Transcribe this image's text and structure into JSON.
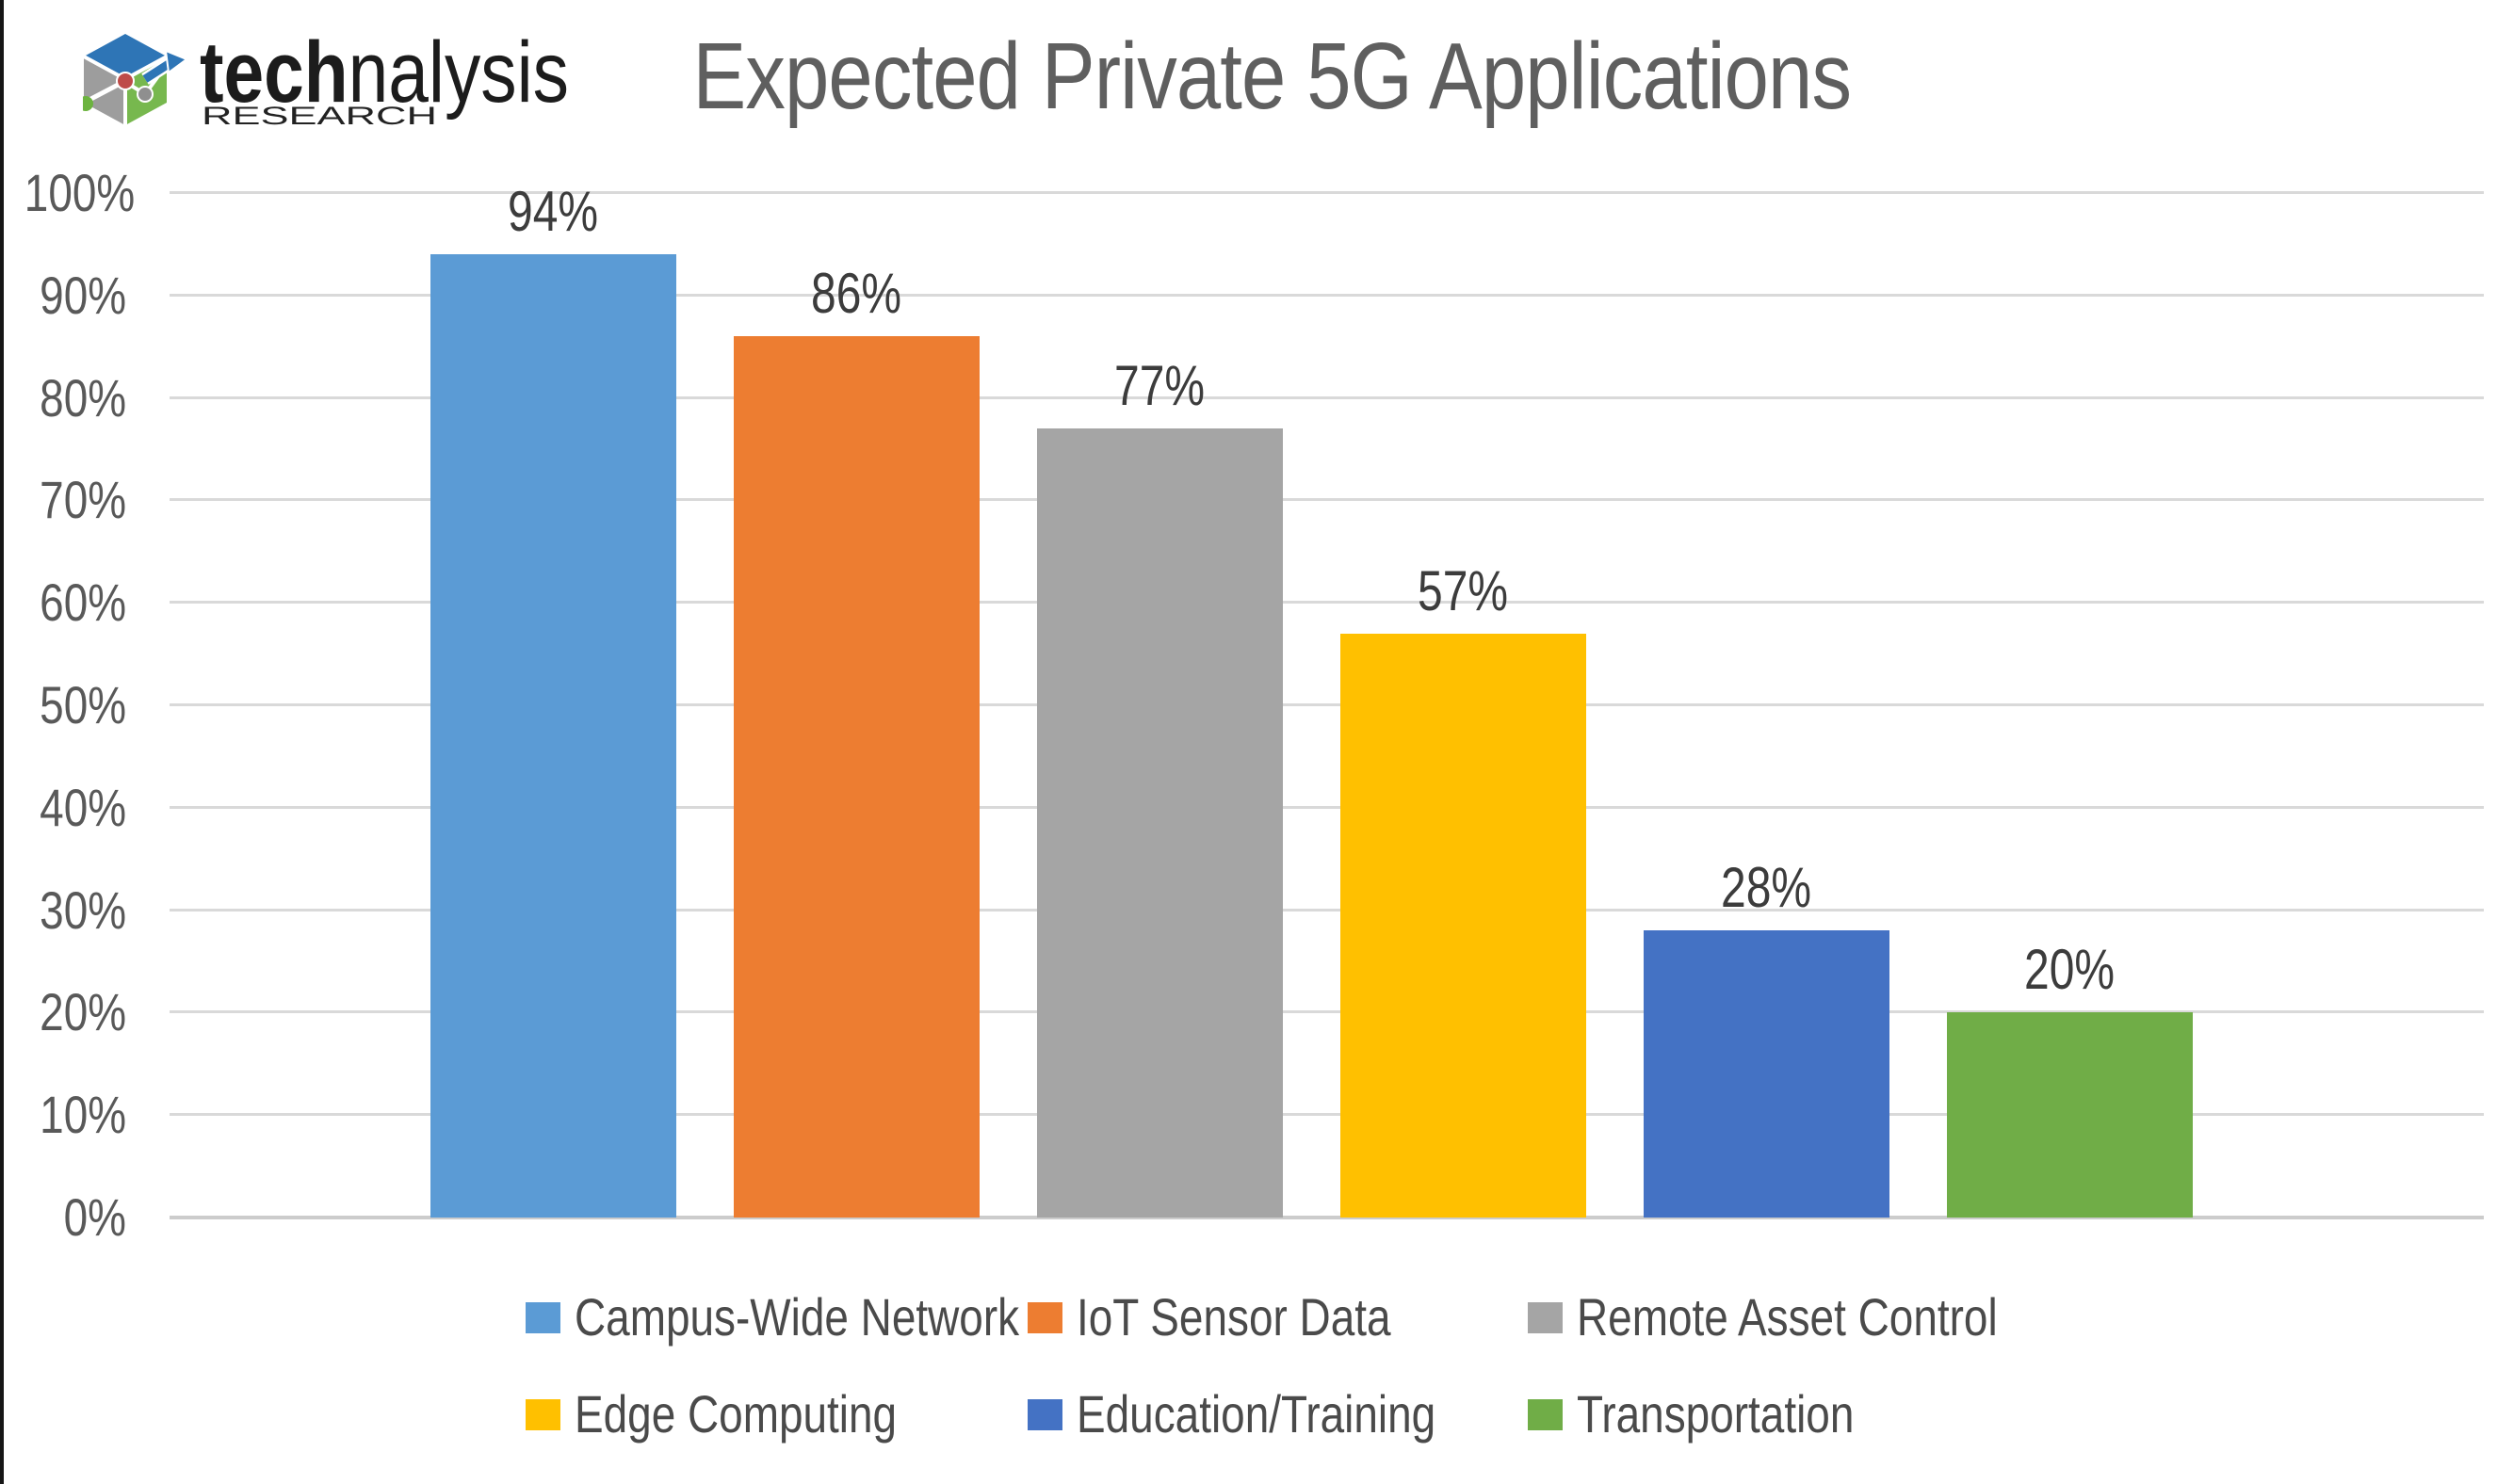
{
  "logo": {
    "brand_bold": "tech",
    "brand_rest": "nalysis",
    "brand_sub": "RESEARCH"
  },
  "title": "Expected Private 5G Applications",
  "chart_data": {
    "type": "bar",
    "title": "Expected Private 5G Applications",
    "categories": [
      "Campus-Wide Network",
      "IoT Sensor Data",
      "Remote Asset Control",
      "Edge Computing",
      "Education/Training",
      "Transportation"
    ],
    "values": [
      94,
      86,
      77,
      57,
      28,
      20
    ],
    "value_labels": [
      "94%",
      "86%",
      "77%",
      "57%",
      "28%",
      "20%"
    ],
    "colors": [
      "#5B9BD5",
      "#ED7D31",
      "#A5A5A5",
      "#FFC000",
      "#4472C4",
      "#70AD47"
    ],
    "xlabel": "",
    "ylabel": "",
    "ylim": [
      0,
      100
    ],
    "y_ticks": [
      "0%",
      "10%",
      "20%",
      "30%",
      "40%",
      "50%",
      "60%",
      "70%",
      "80%",
      "90%",
      "100%"
    ],
    "grid": true,
    "legend_position": "bottom"
  }
}
